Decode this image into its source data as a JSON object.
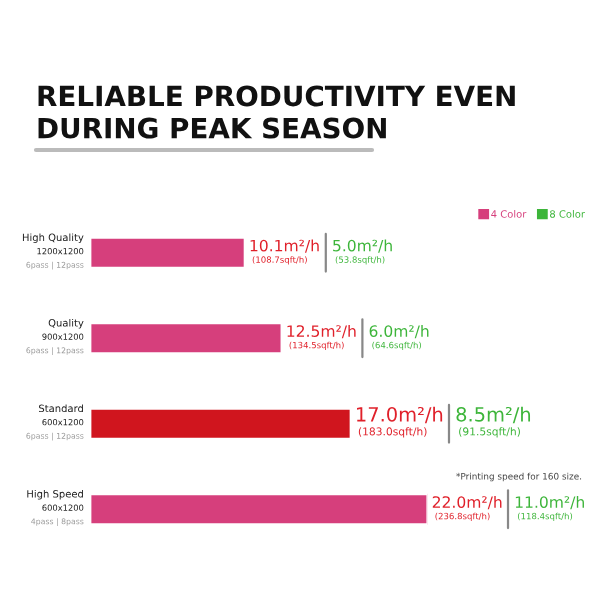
{
  "chart_data": {
    "type": "bar",
    "orientation": "horizontal",
    "title": "RELIABLE PRODUCTIVITY EVEN\nDURING PEAK SEASON",
    "categories": [
      "High Quality\n1200x1200\n6pass | 12pass",
      "Quality\n900x1200\n6pass | 12pass",
      "Standard\n600x1200\n6pass | 12pass",
      "High Speed\n600x1200\n4pass | 8pass"
    ],
    "series": [
      {
        "name": "4 Color",
        "color": "#d63f7c",
        "colors": [
          "#d63f7c",
          "#d63f7c",
          "#d0151e",
          "#d63f7c"
        ],
        "values": [
          10.1,
          12.5,
          17.0,
          22.0
        ],
        "value_labels": [
          "10.1m²/h",
          "12.5m²/h",
          "17.0m²/h",
          "22.0m²/h"
        ]
      },
      {
        "name": "8 Color",
        "color": "#3db53a",
        "values": [
          null,
          null,
          null,
          null
        ]
      }
    ],
    "annotations": [
      "(108.7sqft/h)",
      "5.0m²/h",
      "(53.8sqft/h)",
      "(134.5sqft/h)",
      "6.0m²/h",
      "(64.6sqft/h)",
      "(183.0sqft/h)",
      "8.5m²/h",
      "(91.5sqft/h)",
      "(236.8sqft/h)",
      "11.0m²/h",
      "(118.4sqft/h)",
      "*Printing speed for 160 size."
    ],
    "legend": "top right",
    "grid": false
  }
}
